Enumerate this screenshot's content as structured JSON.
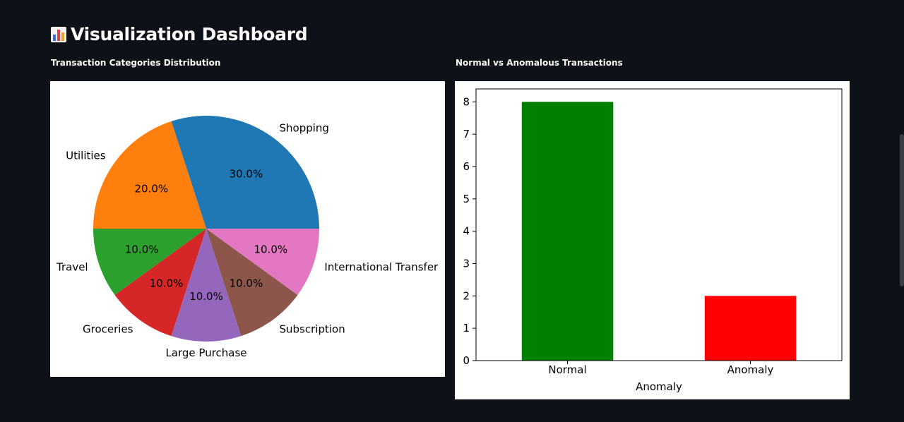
{
  "header": {
    "title": "Visualization Dashboard",
    "icon": "bar-chart-icon"
  },
  "pie_section": {
    "title": "Transaction Categories Distribution"
  },
  "bar_section": {
    "title": "Normal vs Anomalous Transactions"
  },
  "chart_data": [
    {
      "type": "pie",
      "title": "",
      "categories": [
        "Shopping",
        "Utilities",
        "Travel",
        "Groceries",
        "Large Purchase",
        "Subscription",
        "International Transfer"
      ],
      "values": [
        30,
        20,
        10,
        10,
        10,
        10,
        10
      ],
      "labels": [
        "30.0%",
        "20.0%",
        "10.0%",
        "10.0%",
        "10.0%",
        "10.0%",
        "10.0%"
      ],
      "colors": [
        "#1f77b4",
        "#ff7f0e",
        "#2ca02c",
        "#d62728",
        "#9467bd",
        "#8c564b",
        "#e377c2"
      ],
      "start_angle": 0,
      "direction": "counterclockwise"
    },
    {
      "type": "bar",
      "title": "",
      "categories": [
        "Normal",
        "Anomaly"
      ],
      "values": [
        8,
        2
      ],
      "colors": [
        "#008000",
        "#ff0000"
      ],
      "xlabel": "Anomaly",
      "ylabel": "",
      "ylim": [
        0,
        8.4
      ],
      "yticks": [
        "0",
        "1",
        "2",
        "3",
        "4",
        "5",
        "6",
        "7",
        "8"
      ],
      "grid": false
    }
  ]
}
